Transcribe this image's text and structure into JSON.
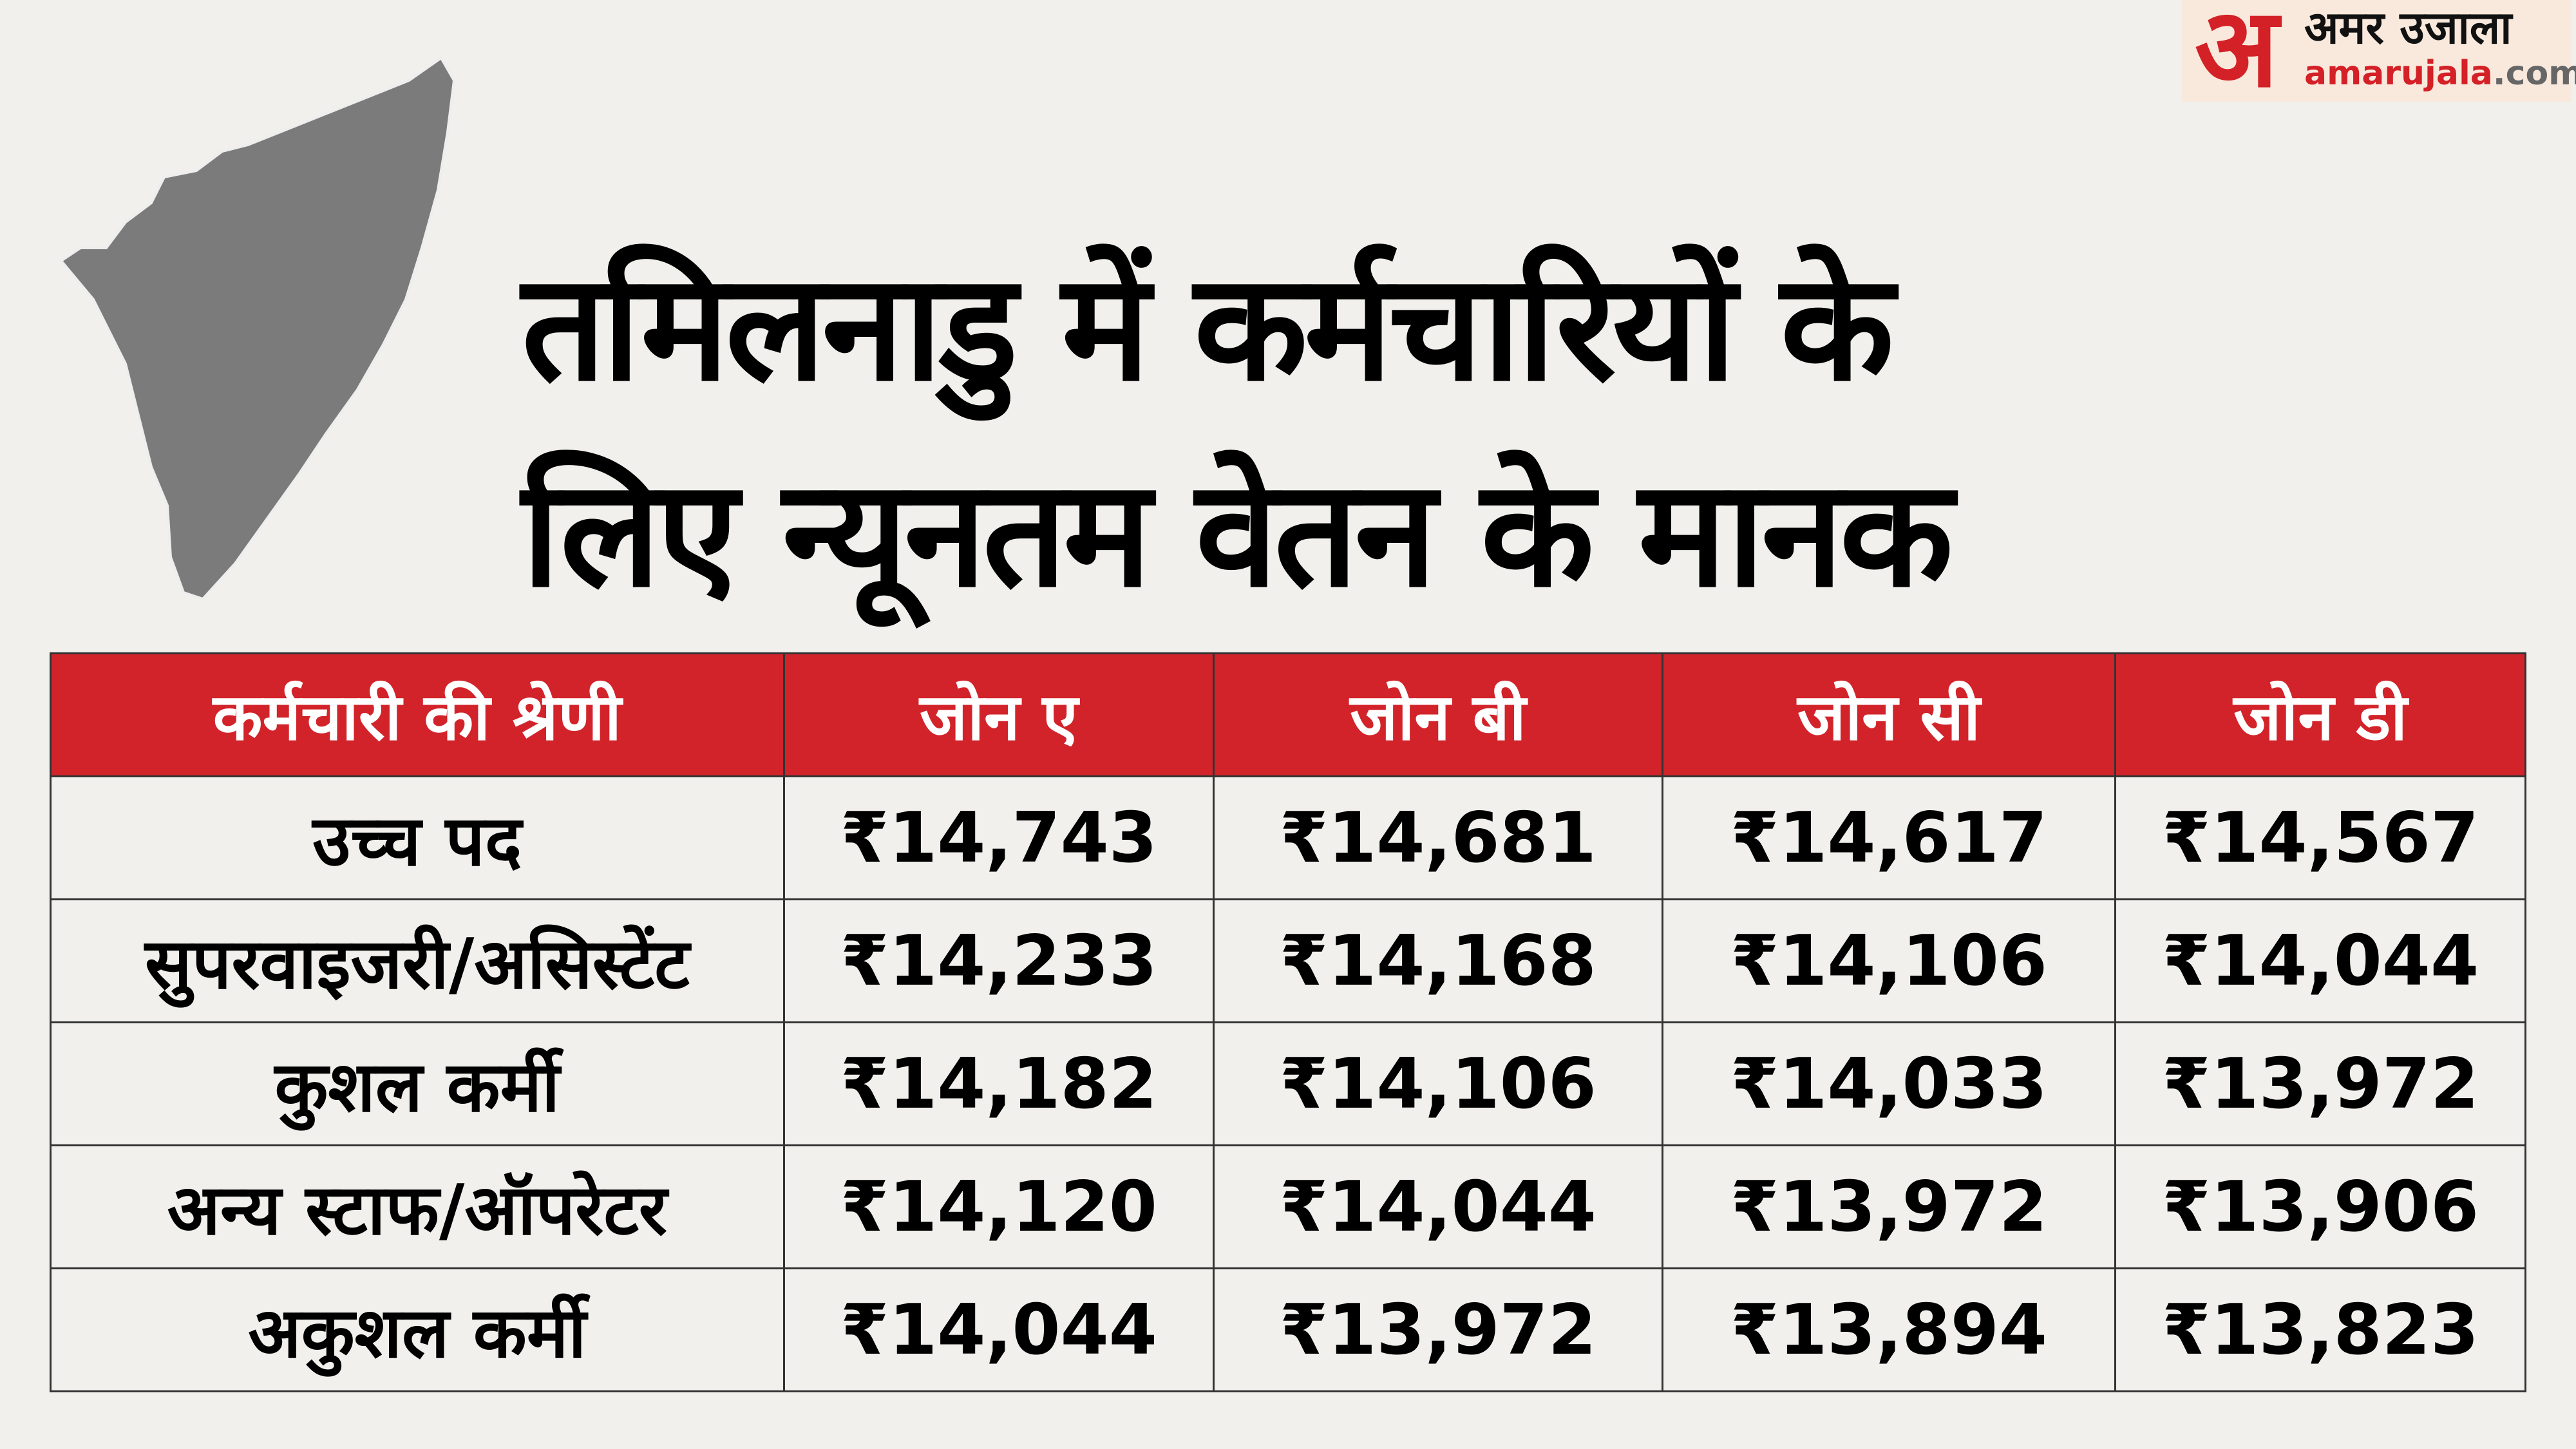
{
  "logo": {
    "mark": "अ",
    "name_hi": "अमर उजाला",
    "name_en": "amarujala",
    ".com": ".com",
    "domain_suffix": ".com"
  },
  "title": {
    "line1": "तमिलनाडु में कर्मचारियों के",
    "line2": "लिए न्यूनतम वेतन के मानक"
  },
  "colors": {
    "header_bg": "#d2232a",
    "map": "#7b7b7b",
    "background": "#f1f0ec"
  },
  "table": {
    "headers": [
      "कर्मचारी की श्रेणी",
      "जोन ए",
      "जोन बी",
      "जोन सी",
      "जोन डी"
    ],
    "rows": [
      [
        "उच्च पद",
        "₹14,743",
        "₹14,681",
        "₹14,617",
        "₹14,567"
      ],
      [
        "सुपरवाइजरी/असिस्टेंट",
        "₹14,233",
        "₹14,168",
        "₹14,106",
        "₹14,044"
      ],
      [
        "कुशल कर्मी",
        "₹14,182",
        "₹14,106",
        "₹14,033",
        "₹13,972"
      ],
      [
        "अन्य स्टाफ/ऑपरेटर",
        "₹14,120",
        "₹14,044",
        "₹13,972",
        "₹13,906"
      ],
      [
        "अकुशल कर्मी",
        "₹14,044",
        "₹13,972",
        "₹13,894",
        "₹13,823"
      ]
    ]
  }
}
